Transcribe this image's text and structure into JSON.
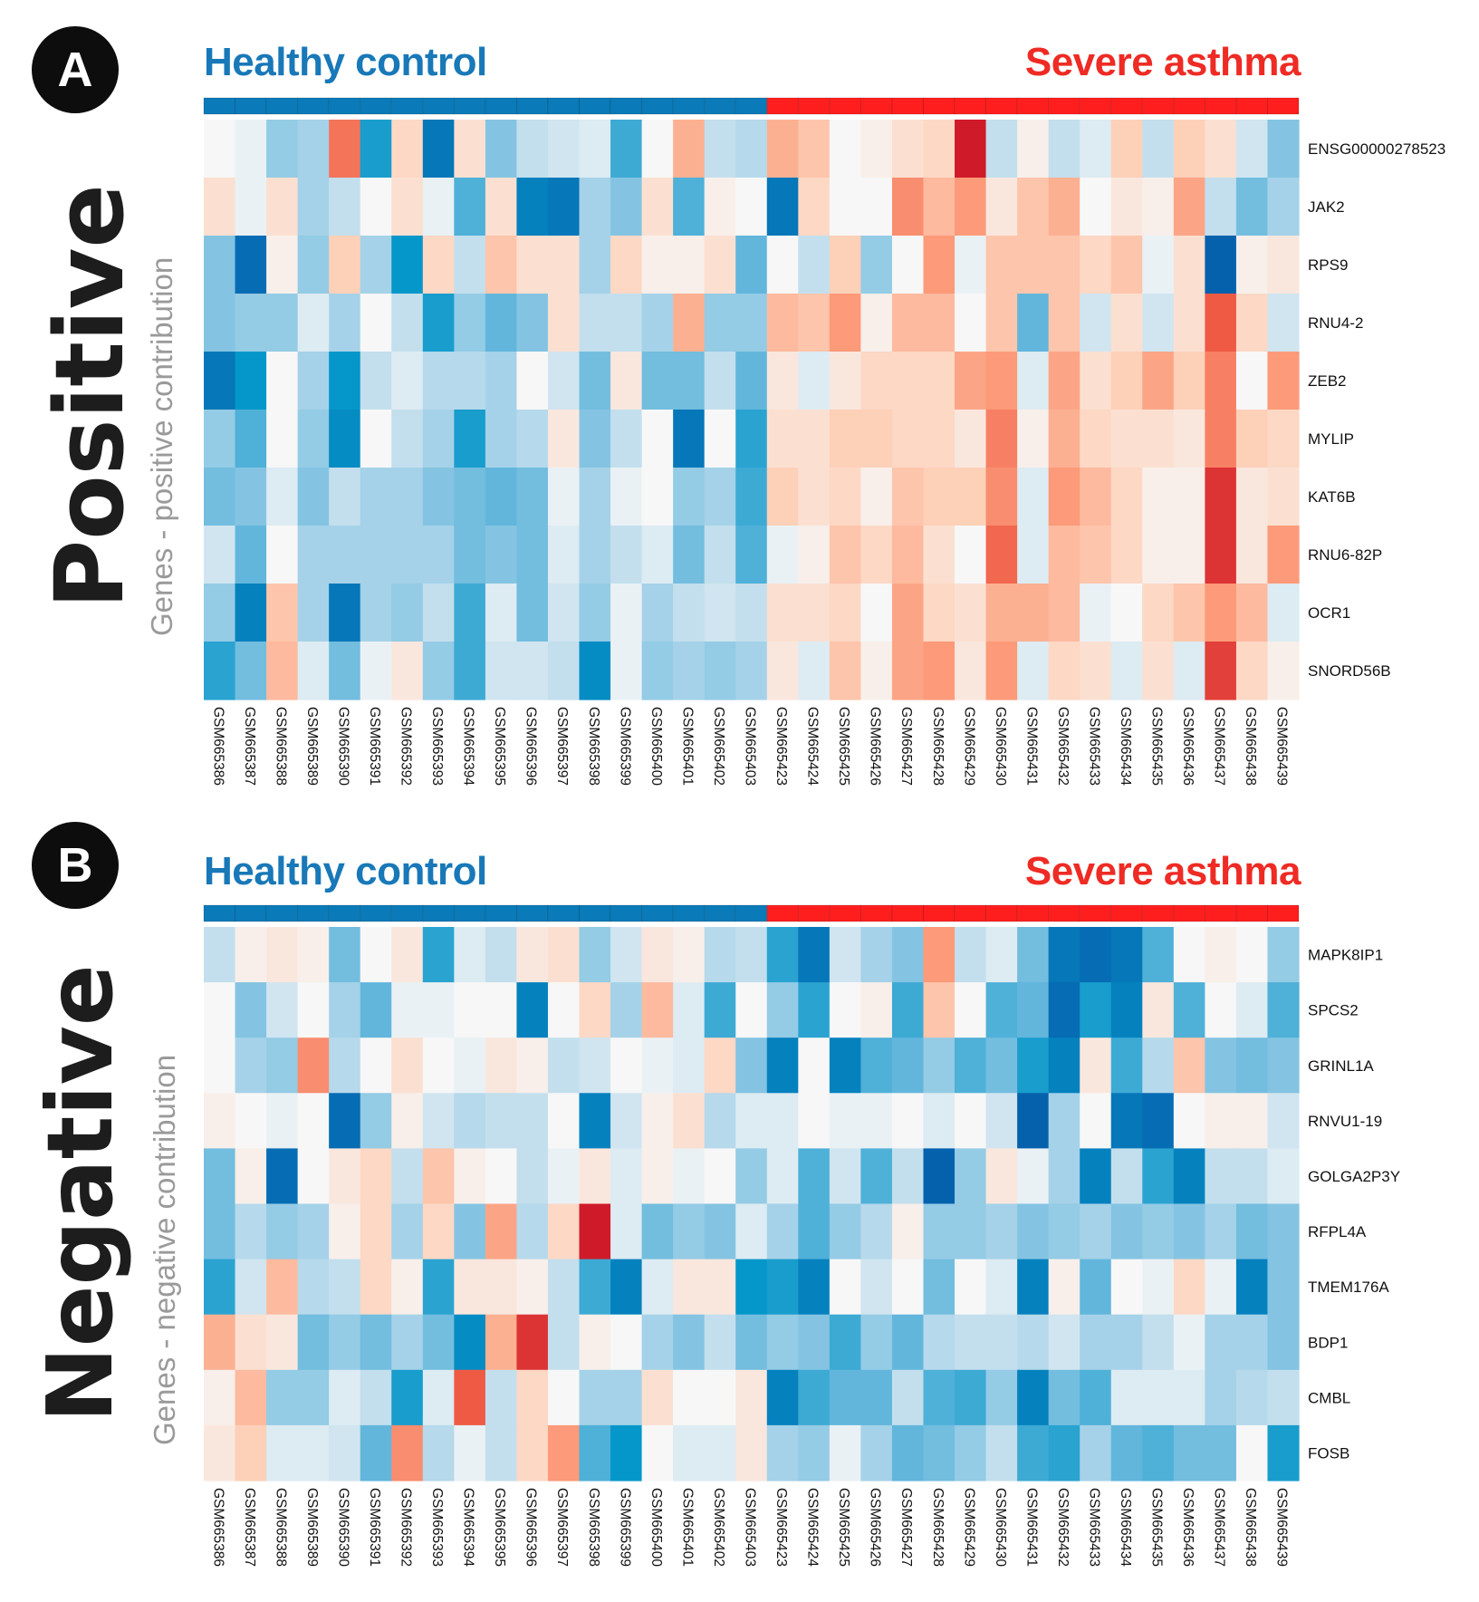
{
  "colors": {
    "healthy": "#0a7ab8",
    "asthma": "#ff1e1e",
    "low": "#0661ad",
    "mid": "#f7f7f7",
    "high": "#cf1a2a"
  },
  "panels": [
    {
      "badge": "A",
      "title": "Positive",
      "subtitle": "Genes - positive contribution",
      "group_labels": {
        "healthy": "Healthy control",
        "asthma": "Severe asthma"
      }
    },
    {
      "badge": "B",
      "title": "Negative",
      "subtitle": "Genes - negative contribution",
      "group_labels": {
        "healthy": "Healthy control",
        "asthma": "Severe asthma"
      }
    }
  ],
  "chart_data": [
    {
      "type": "heatmap",
      "groups": [
        {
          "name": "Healthy control",
          "count": 18
        },
        {
          "name": "Severe asthma",
          "count": 17
        }
      ],
      "x": [
        "GSM665386",
        "GSM665387",
        "GSM665388",
        "GSM665389",
        "GSM665390",
        "GSM665391",
        "GSM665392",
        "GSM665393",
        "GSM665394",
        "GSM665395",
        "GSM665396",
        "GSM665397",
        "GSM665398",
        "GSM665399",
        "GSM665400",
        "GSM665401",
        "GSM665402",
        "GSM665403",
        "GSM665423",
        "GSM665424",
        "GSM665425",
        "GSM665426",
        "GSM665427",
        "GSM665428",
        "GSM665429",
        "GSM665430",
        "GSM665431",
        "GSM665432",
        "GSM665433",
        "GSM665434",
        "GSM665435",
        "GSM665436",
        "GSM665437",
        "GSM665438",
        "GSM665439"
      ],
      "y": [
        "ENSG00000278523",
        "JAK2",
        "RPS9",
        "RNU4-2",
        "ZEB2",
        "MYLIP",
        "KAT6B",
        "RNU6-82P",
        "OCR1",
        "SNORD56B"
      ],
      "scale": [
        -1,
        1
      ],
      "values": [
        [
          0.0,
          -0.05,
          -0.35,
          -0.3,
          0.65,
          -0.7,
          0.2,
          -0.9,
          0.15,
          -0.4,
          -0.2,
          -0.15,
          -0.1,
          -0.6,
          0.0,
          0.4,
          -0.2,
          -0.25,
          0.4,
          0.3,
          0.0,
          0.05,
          0.15,
          0.2,
          1.0,
          -0.2,
          0.05,
          -0.2,
          -0.1,
          0.25,
          -0.2,
          0.25,
          0.15,
          -0.15,
          -0.4
        ],
        [
          0.15,
          -0.05,
          0.15,
          -0.3,
          -0.2,
          0.0,
          0.15,
          -0.05,
          -0.55,
          0.15,
          -0.85,
          -0.9,
          -0.3,
          -0.4,
          0.15,
          -0.55,
          0.05,
          0.0,
          -0.9,
          0.2,
          0.0,
          0.0,
          0.55,
          0.35,
          0.5,
          0.1,
          0.3,
          0.4,
          0.0,
          0.1,
          0.05,
          0.45,
          -0.2,
          -0.45,
          -0.3
        ],
        [
          -0.4,
          -0.95,
          0.05,
          -0.35,
          0.25,
          -0.3,
          -0.75,
          0.2,
          -0.2,
          0.3,
          0.15,
          0.15,
          -0.3,
          0.2,
          0.05,
          0.05,
          0.15,
          -0.5,
          0.0,
          -0.2,
          0.25,
          -0.35,
          0.0,
          0.5,
          -0.05,
          0.3,
          0.3,
          0.3,
          0.2,
          0.3,
          -0.05,
          0.15,
          -1.0,
          0.05,
          0.1
        ],
        [
          -0.4,
          -0.35,
          -0.35,
          -0.1,
          -0.3,
          0.0,
          -0.2,
          -0.7,
          -0.35,
          -0.5,
          -0.4,
          0.15,
          -0.2,
          -0.2,
          -0.3,
          0.4,
          -0.35,
          -0.35,
          0.35,
          0.3,
          0.5,
          0.05,
          0.35,
          0.35,
          0.0,
          0.3,
          -0.5,
          0.3,
          -0.15,
          0.15,
          -0.15,
          0.15,
          0.75,
          0.2,
          -0.15
        ],
        [
          -0.9,
          -0.75,
          0.0,
          -0.3,
          -0.75,
          -0.2,
          -0.1,
          -0.25,
          -0.25,
          -0.3,
          0.0,
          -0.15,
          -0.45,
          0.1,
          -0.45,
          -0.45,
          -0.2,
          -0.5,
          0.1,
          -0.1,
          0.1,
          0.2,
          0.2,
          0.2,
          0.45,
          0.5,
          -0.1,
          0.45,
          0.15,
          0.25,
          0.45,
          0.25,
          0.6,
          0.0,
          0.5
        ],
        [
          -0.35,
          -0.55,
          0.0,
          -0.35,
          -0.8,
          0.0,
          -0.2,
          -0.3,
          -0.7,
          -0.3,
          -0.25,
          0.1,
          -0.4,
          -0.2,
          0.0,
          -0.9,
          0.0,
          -0.65,
          0.15,
          0.15,
          0.25,
          0.25,
          0.2,
          0.2,
          0.1,
          0.6,
          0.05,
          0.4,
          0.2,
          0.15,
          0.15,
          0.1,
          0.6,
          0.25,
          0.2
        ],
        [
          -0.45,
          -0.4,
          -0.1,
          -0.4,
          -0.2,
          -0.3,
          -0.3,
          -0.4,
          -0.45,
          -0.5,
          -0.45,
          -0.05,
          -0.3,
          -0.05,
          0.0,
          -0.35,
          -0.3,
          -0.6,
          0.25,
          0.15,
          0.2,
          0.05,
          0.3,
          0.25,
          0.25,
          0.55,
          -0.1,
          0.5,
          0.35,
          0.2,
          0.05,
          0.05,
          0.9,
          0.1,
          0.15
        ],
        [
          -0.15,
          -0.5,
          0.0,
          -0.3,
          -0.3,
          -0.3,
          -0.3,
          -0.3,
          -0.45,
          -0.4,
          -0.45,
          -0.1,
          -0.3,
          -0.2,
          -0.1,
          -0.45,
          -0.2,
          -0.55,
          -0.05,
          0.05,
          0.3,
          0.2,
          0.35,
          0.15,
          0.0,
          0.7,
          -0.1,
          0.35,
          0.3,
          0.2,
          0.05,
          0.05,
          0.9,
          0.1,
          0.5
        ],
        [
          -0.35,
          -0.85,
          0.3,
          -0.3,
          -0.9,
          -0.3,
          -0.35,
          -0.2,
          -0.6,
          -0.1,
          -0.45,
          -0.15,
          -0.35,
          -0.05,
          -0.3,
          -0.2,
          -0.15,
          -0.2,
          0.15,
          0.15,
          0.2,
          0.0,
          0.45,
          0.2,
          0.15,
          0.4,
          0.4,
          0.35,
          -0.05,
          0.0,
          0.2,
          0.3,
          0.5,
          0.35,
          -0.1
        ],
        [
          -0.65,
          -0.45,
          0.35,
          -0.1,
          -0.45,
          -0.05,
          0.1,
          -0.35,
          -0.6,
          -0.15,
          -0.15,
          -0.2,
          -0.8,
          -0.05,
          -0.35,
          -0.3,
          -0.35,
          -0.3,
          0.1,
          -0.1,
          0.3,
          0.05,
          0.45,
          0.5,
          0.1,
          0.5,
          -0.1,
          0.2,
          0.15,
          -0.1,
          0.15,
          -0.1,
          0.85,
          0.2,
          0.05
        ]
      ]
    },
    {
      "type": "heatmap",
      "groups": [
        {
          "name": "Healthy control",
          "count": 18
        },
        {
          "name": "Severe asthma",
          "count": 17
        }
      ],
      "x": [
        "GSM665386",
        "GSM665387",
        "GSM665388",
        "GSM665389",
        "GSM665390",
        "GSM665391",
        "GSM665392",
        "GSM665393",
        "GSM665394",
        "GSM665395",
        "GSM665396",
        "GSM665397",
        "GSM665398",
        "GSM665399",
        "GSM665400",
        "GSM665401",
        "GSM665402",
        "GSM665403",
        "GSM665423",
        "GSM665424",
        "GSM665425",
        "GSM665426",
        "GSM665427",
        "GSM665428",
        "GSM665429",
        "GSM665430",
        "GSM665431",
        "GSM665432",
        "GSM665433",
        "GSM665434",
        "GSM665435",
        "GSM665436",
        "GSM665437",
        "GSM665438",
        "GSM665439"
      ],
      "y": [
        "MAPK8IP1",
        "SPCS2",
        "GRINL1A",
        "RNVU1-19",
        "GOLGA2P3Y",
        "RFPL4A",
        "TMEM176A",
        "BDP1",
        "CMBL",
        "FOSB"
      ],
      "scale": [
        -1,
        1
      ],
      "values": [
        [
          -0.2,
          0.05,
          0.1,
          0.05,
          -0.45,
          0.0,
          0.1,
          -0.65,
          -0.1,
          -0.2,
          0.1,
          0.15,
          -0.35,
          -0.15,
          0.1,
          0.05,
          -0.25,
          -0.2,
          -0.65,
          -0.9,
          -0.15,
          -0.3,
          -0.4,
          0.5,
          -0.2,
          -0.1,
          -0.45,
          -0.9,
          -0.95,
          -0.9,
          -0.55,
          0.0,
          0.05,
          0.0,
          -0.35
        ],
        [
          0.0,
          -0.4,
          -0.15,
          0.0,
          -0.3,
          -0.5,
          -0.05,
          -0.05,
          0.0,
          0.0,
          -0.85,
          0.0,
          0.2,
          -0.3,
          0.35,
          -0.1,
          -0.6,
          0.0,
          -0.35,
          -0.65,
          0.0,
          0.05,
          -0.6,
          0.3,
          0.0,
          -0.55,
          -0.5,
          -0.95,
          -0.7,
          -0.85,
          0.1,
          -0.55,
          0.0,
          -0.1,
          -0.55
        ],
        [
          0.0,
          -0.3,
          -0.35,
          0.55,
          -0.25,
          0.0,
          0.15,
          0.0,
          -0.05,
          0.1,
          0.05,
          -0.2,
          -0.15,
          0.0,
          -0.05,
          -0.1,
          0.2,
          -0.4,
          -0.85,
          0.0,
          -0.85,
          -0.55,
          -0.5,
          -0.35,
          -0.55,
          -0.45,
          -0.7,
          -0.85,
          0.1,
          -0.6,
          -0.25,
          0.3,
          -0.4,
          -0.45,
          -0.4
        ],
        [
          0.05,
          0.0,
          -0.05,
          0.0,
          -0.95,
          -0.35,
          0.05,
          -0.15,
          -0.25,
          -0.2,
          -0.2,
          0.0,
          -0.85,
          -0.15,
          0.05,
          0.15,
          -0.25,
          -0.1,
          -0.1,
          0.0,
          -0.05,
          -0.05,
          0.0,
          -0.1,
          0.0,
          -0.15,
          -1.0,
          -0.3,
          0.0,
          -0.9,
          -0.95,
          0.0,
          0.05,
          0.05,
          -0.15
        ],
        [
          -0.45,
          0.05,
          -0.95,
          0.0,
          0.1,
          0.2,
          -0.2,
          0.3,
          0.05,
          0.0,
          -0.2,
          -0.05,
          0.1,
          -0.1,
          0.05,
          -0.05,
          0.0,
          -0.35,
          -0.1,
          -0.55,
          -0.15,
          -0.55,
          -0.2,
          -1.0,
          -0.35,
          0.1,
          -0.05,
          -0.3,
          -0.85,
          -0.2,
          -0.65,
          -0.85,
          -0.2,
          -0.2,
          -0.1
        ],
        [
          -0.45,
          -0.25,
          -0.35,
          -0.3,
          0.05,
          0.2,
          -0.3,
          0.2,
          -0.4,
          0.45,
          -0.25,
          0.2,
          1.0,
          -0.1,
          -0.45,
          -0.35,
          -0.4,
          -0.1,
          -0.3,
          -0.55,
          -0.35,
          -0.25,
          0.05,
          -0.35,
          -0.35,
          -0.3,
          -0.4,
          -0.35,
          -0.3,
          -0.4,
          -0.35,
          -0.4,
          -0.3,
          -0.45,
          -0.4
        ],
        [
          -0.65,
          -0.15,
          0.35,
          -0.25,
          -0.2,
          0.2,
          0.05,
          -0.65,
          0.1,
          0.1,
          0.05,
          -0.2,
          -0.6,
          -0.85,
          -0.1,
          0.1,
          0.1,
          -0.75,
          -0.7,
          -0.85,
          0.0,
          -0.15,
          0.0,
          -0.45,
          0.0,
          -0.1,
          -0.85,
          0.05,
          -0.5,
          0.0,
          -0.05,
          0.2,
          -0.05,
          -0.85,
          -0.4
        ],
        [
          0.4,
          0.15,
          0.1,
          -0.45,
          -0.35,
          -0.45,
          -0.3,
          -0.45,
          -0.8,
          0.4,
          0.9,
          -0.2,
          0.05,
          0.0,
          -0.3,
          -0.4,
          -0.2,
          -0.45,
          -0.35,
          -0.4,
          -0.6,
          -0.35,
          -0.5,
          -0.25,
          -0.2,
          -0.2,
          -0.25,
          -0.15,
          -0.3,
          -0.3,
          -0.2,
          -0.05,
          -0.3,
          -0.3,
          -0.4
        ],
        [
          0.05,
          0.35,
          -0.35,
          -0.35,
          -0.1,
          -0.2,
          -0.7,
          -0.1,
          0.75,
          -0.2,
          0.2,
          0.0,
          -0.3,
          -0.3,
          0.15,
          0.0,
          0.0,
          0.1,
          -0.85,
          -0.6,
          -0.5,
          -0.5,
          -0.2,
          -0.55,
          -0.6,
          -0.35,
          -0.85,
          -0.45,
          -0.55,
          -0.1,
          -0.1,
          -0.1,
          -0.3,
          -0.25,
          -0.2
        ],
        [
          0.1,
          0.25,
          -0.1,
          -0.1,
          -0.15,
          -0.5,
          0.55,
          -0.25,
          -0.05,
          -0.2,
          0.2,
          0.5,
          -0.55,
          -0.75,
          0.0,
          -0.1,
          -0.1,
          0.1,
          -0.3,
          -0.35,
          -0.05,
          -0.3,
          -0.5,
          -0.45,
          -0.35,
          -0.2,
          -0.6,
          -0.65,
          -0.3,
          -0.5,
          -0.55,
          -0.45,
          -0.45,
          0.0,
          -0.7
        ]
      ]
    }
  ]
}
